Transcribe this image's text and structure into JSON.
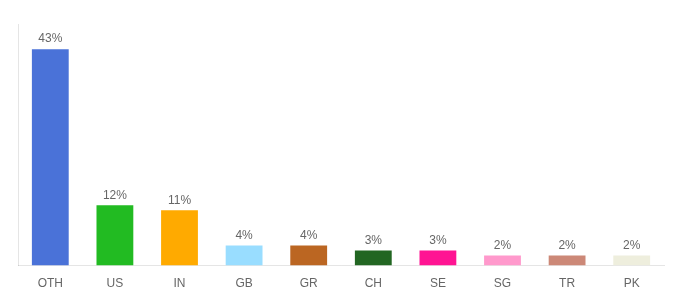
{
  "chart_data": {
    "type": "bar",
    "categories": [
      "OTH",
      "US",
      "IN",
      "GB",
      "GR",
      "CH",
      "SE",
      "SG",
      "TR",
      "PK"
    ],
    "values": [
      43,
      12,
      11,
      4,
      4,
      3,
      3,
      2,
      2,
      2
    ],
    "value_labels": [
      "43%",
      "12%",
      "11%",
      "4%",
      "4%",
      "3%",
      "3%",
      "2%",
      "2%",
      "2%"
    ],
    "colors": [
      "#4a72d8",
      "#22bb22",
      "#ffaa00",
      "#99ddff",
      "#bb6622",
      "#226622",
      "#ff1493",
      "#ff99cc",
      "#cc8877",
      "#eeeedd"
    ],
    "ylim": [
      0,
      48
    ],
    "grid": false,
    "data_labels": true,
    "tick_labels": "x"
  }
}
